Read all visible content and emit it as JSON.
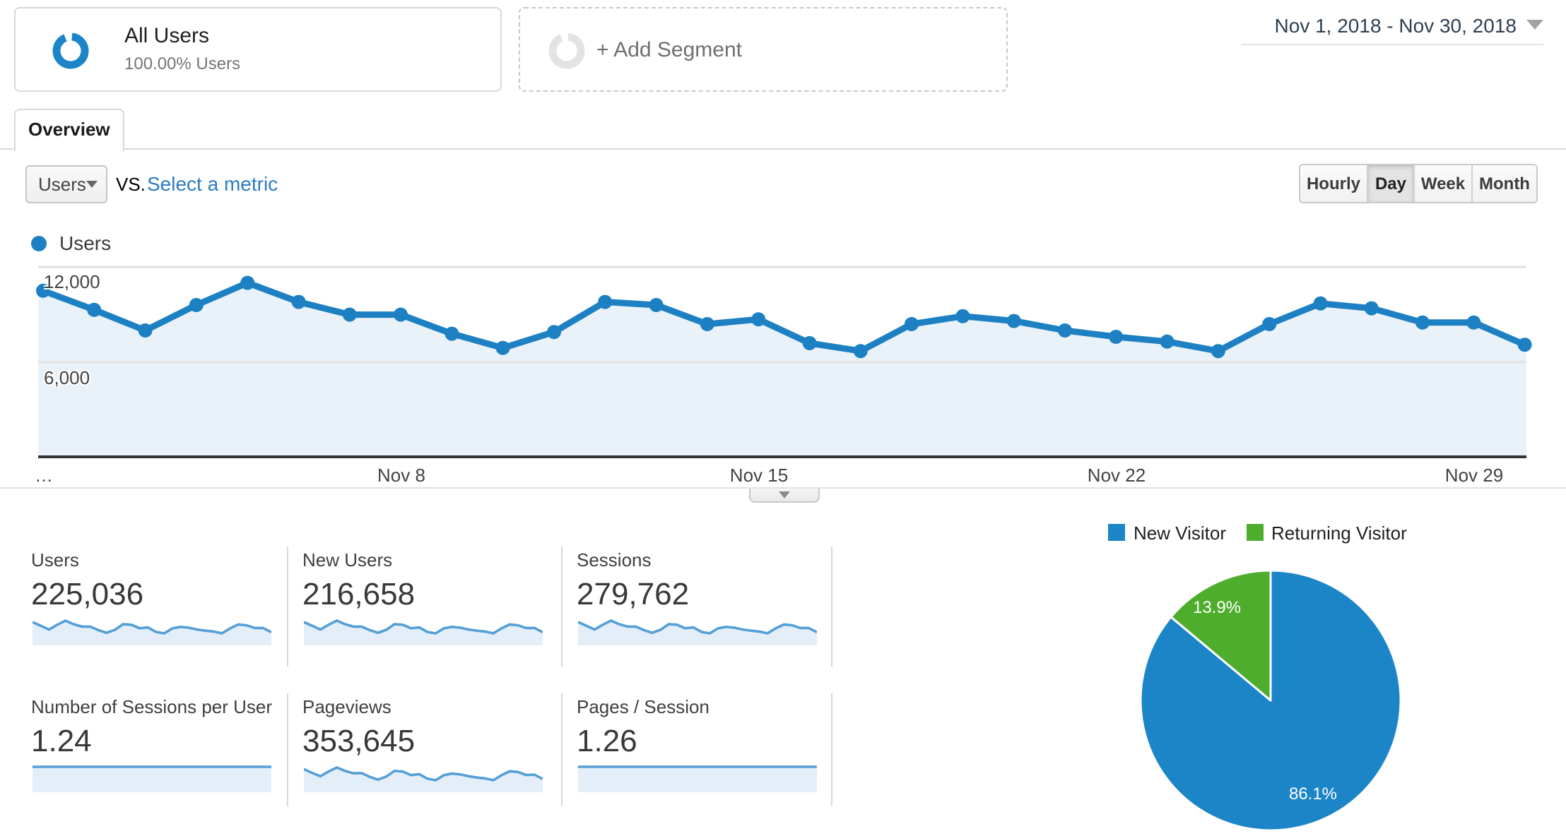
{
  "segment_bar": {
    "all_users": {
      "title": "All Users",
      "subtitle": "100.00% Users"
    },
    "add_segment_label": "+ Add Segment"
  },
  "date_picker": {
    "range": "Nov 1, 2018 - Nov 30, 2018"
  },
  "tabs": {
    "overview": "Overview"
  },
  "controls": {
    "metric_selector_value": "Users",
    "vs_label": "vs.",
    "select_metric_label": "Select a metric",
    "granularity_options": [
      "Hourly",
      "Day",
      "Week",
      "Month"
    ],
    "granularity_selected": "Day"
  },
  "chart_data": [
    {
      "type": "area",
      "title": "Users",
      "series_name": "Users",
      "x": [
        "Nov 1",
        "Nov 2",
        "Nov 3",
        "Nov 4",
        "Nov 5",
        "Nov 6",
        "Nov 7",
        "Nov 8",
        "Nov 9",
        "Nov 10",
        "Nov 11",
        "Nov 12",
        "Nov 13",
        "Nov 14",
        "Nov 15",
        "Nov 16",
        "Nov 17",
        "Nov 18",
        "Nov 19",
        "Nov 20",
        "Nov 21",
        "Nov 22",
        "Nov 23",
        "Nov 24",
        "Nov 25",
        "Nov 26",
        "Nov 27",
        "Nov 28",
        "Nov 29",
        "Nov 30"
      ],
      "values": [
        10500,
        9300,
        8000,
        9600,
        11000,
        9800,
        9000,
        9000,
        7800,
        6900,
        7900,
        9800,
        9600,
        8400,
        8700,
        7200,
        6700,
        8400,
        8900,
        8600,
        8000,
        7600,
        7300,
        6700,
        8400,
        9700,
        9400,
        8500,
        8500,
        7100
      ],
      "xtick_labels": [
        "…",
        "Nov 8",
        "Nov 15",
        "Nov 22",
        "Nov 29"
      ],
      "ytick_labels": [
        "12,000",
        "6,000"
      ],
      "ylim": [
        0,
        12000
      ],
      "grid": true,
      "legend_position": "top-left",
      "color": "#1c80c3",
      "fill": "#e9f1f9"
    },
    {
      "type": "pie",
      "labels": [
        "New Visitor",
        "Returning Visitor"
      ],
      "values": [
        86.1,
        13.9
      ],
      "value_labels": [
        "86.1%",
        "13.9%"
      ],
      "colors": [
        "#1c85c7",
        "#4fad2d"
      ],
      "legend_position": "top"
    }
  ],
  "metrics": [
    {
      "label": "Users",
      "value": "225,036",
      "sparkline": [
        10500,
        9300,
        8000,
        9600,
        11000,
        9800,
        9000,
        9000,
        7800,
        6900,
        7900,
        9800,
        9600,
        8400,
        8700,
        7200,
        6700,
        8400,
        8900,
        8600,
        8000,
        7600,
        7300,
        6700,
        8400,
        9700,
        9400,
        8500,
        8500,
        7100
      ]
    },
    {
      "label": "New Users",
      "value": "216,658",
      "sparkline": [
        10400,
        9200,
        7900,
        9500,
        10900,
        9700,
        8900,
        8900,
        7700,
        6800,
        7800,
        9700,
        9500,
        8300,
        8600,
        7100,
        6600,
        8300,
        8800,
        8500,
        7900,
        7500,
        7200,
        6600,
        8300,
        9600,
        9300,
        8400,
        8400,
        7000
      ]
    },
    {
      "label": "Sessions",
      "value": "279,762",
      "sparkline": [
        10600,
        9400,
        8100,
        9700,
        11100,
        9900,
        9100,
        9100,
        7900,
        7000,
        8000,
        9900,
        9700,
        8500,
        8800,
        7300,
        6800,
        8500,
        9000,
        8700,
        8100,
        7700,
        7400,
        6800,
        8500,
        9800,
        9500,
        8600,
        8600,
        7200
      ]
    },
    {
      "label": "Number of Sessions per User",
      "value": "1.24",
      "sparkline": [
        1.24,
        1.24
      ]
    },
    {
      "label": "Pageviews",
      "value": "353,645",
      "sparkline": [
        11800,
        10400,
        9100,
        10900,
        12400,
        11100,
        10200,
        10300,
        8900,
        7800,
        9000,
        11100,
        10900,
        9500,
        9900,
        8200,
        7600,
        9500,
        10100,
        9800,
        9100,
        8600,
        8300,
        7600,
        9500,
        11000,
        10700,
        9600,
        9700,
        8100
      ]
    },
    {
      "label": "Pages / Session",
      "value": "1.26",
      "sparkline": [
        1.26,
        1.26
      ]
    }
  ]
}
